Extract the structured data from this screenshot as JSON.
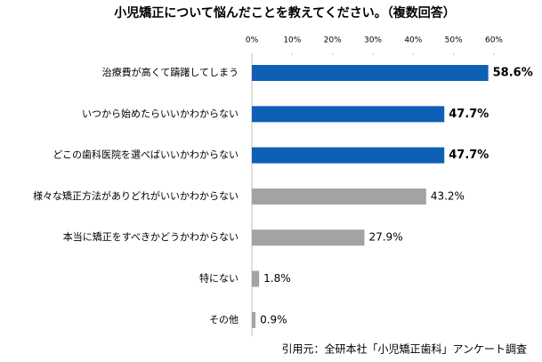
{
  "chart_data": {
    "type": "bar",
    "orientation": "horizontal",
    "title": "小児矯正について悩んだことを教えてください。（複数回答）",
    "categories": [
      "治療費が高くて躊躇してしまう",
      "いつから始めたらいいかわからない",
      "どこの歯科医院を選べばいいかわからない",
      "様々な矯正方法がありどれがいいかわからない",
      "本当に矯正をすべきかどうかわからない",
      "特にない",
      "その他"
    ],
    "values": [
      58.6,
      47.7,
      47.7,
      43.2,
      27.9,
      1.8,
      0.9
    ],
    "value_labels": [
      "58.6%",
      "47.7%",
      "47.7%",
      "43.2%",
      "27.9%",
      "1.8%",
      "0.9%"
    ],
    "colors": [
      "#0f5fb5",
      "#0f5fb5",
      "#0f5fb5",
      "#a3a3a3",
      "#a3a3a3",
      "#a3a3a3",
      "#a3a3a3"
    ],
    "bold_labels": [
      true,
      true,
      true,
      false,
      false,
      false,
      false
    ],
    "xlim": [
      0,
      60
    ],
    "xticks": [
      {
        "value": 0,
        "label": "0%"
      },
      {
        "value": 10,
        "label": "10%"
      },
      {
        "value": 20,
        "label": "20%"
      },
      {
        "value": 30,
        "label": "30%"
      },
      {
        "value": 40,
        "label": "40%"
      },
      {
        "value": 50,
        "label": "50%"
      },
      {
        "value": 60,
        "label": "60%"
      }
    ],
    "source": "引用元：全研本社「小児矯正歯科」アンケート調査"
  }
}
